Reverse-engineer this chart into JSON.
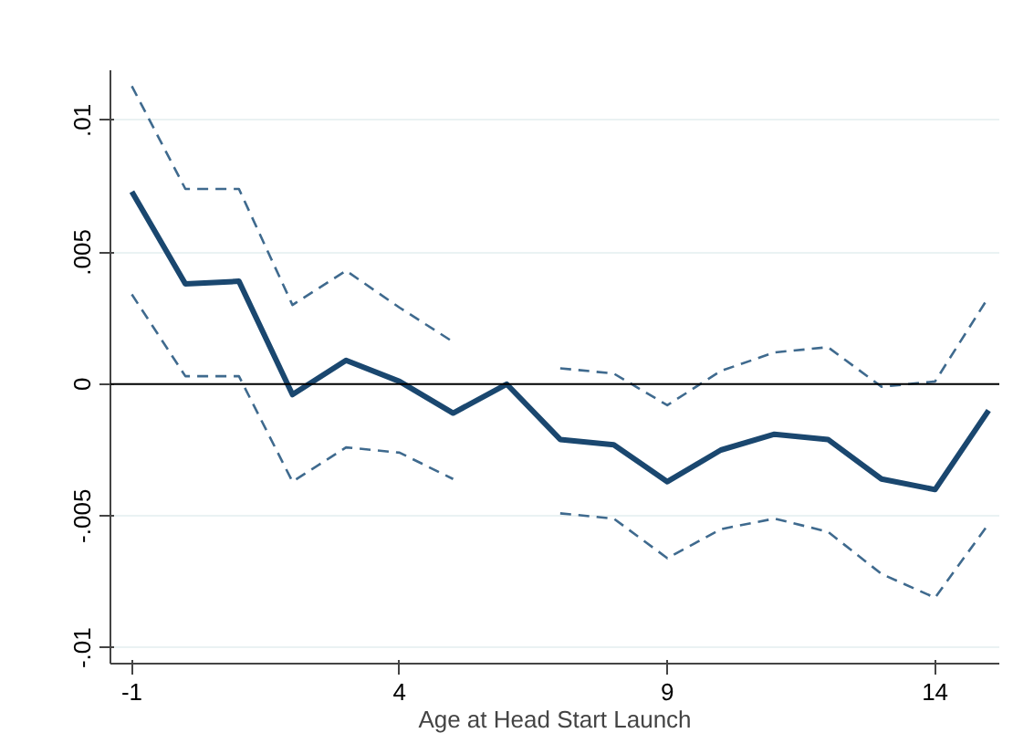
{
  "chart_data": {
    "type": "line",
    "xlabel": "Age at Head Start Launch",
    "x": [
      -1,
      0,
      1,
      2,
      3,
      4,
      5,
      6,
      7,
      8,
      9,
      10,
      11,
      12,
      13,
      14,
      15
    ],
    "series": [
      {
        "color": "#1a476f",
        "line_style": "solid",
        "values": [
          0.0073,
          0.0038,
          0.0039,
          -0.0004,
          0.0009,
          0.0001,
          -0.0011,
          0.0,
          -0.0021,
          -0.0023,
          -0.0037,
          -0.0025,
          -0.0019,
          -0.0021,
          -0.0036,
          -0.004,
          -0.001
        ]
      },
      {
        "color": "#3f6a8e",
        "line_style": "dashed",
        "values": [
          0.0113,
          0.0074,
          0.0074,
          0.003,
          0.0043,
          0.0029,
          0.0016,
          null,
          0.0006,
          0.0004,
          -0.0008,
          0.0005,
          0.0012,
          0.0014,
          -0.0001,
          0.0001,
          0.0033
        ]
      },
      {
        "color": "#3f6a8e",
        "line_style": "dashed",
        "values": [
          0.0034,
          0.0003,
          0.0003,
          -0.0037,
          -0.0024,
          -0.0026,
          -0.0036,
          null,
          -0.0049,
          -0.0051,
          -0.0066,
          -0.0055,
          -0.0051,
          -0.0056,
          -0.0072,
          -0.0081,
          -0.0053
        ]
      }
    ],
    "xlim": [
      -1.4,
      15.2
    ],
    "ylim": [
      -0.0106,
      0.0119
    ],
    "xticks": [
      -1,
      4,
      9,
      14
    ],
    "yticks": [
      {
        "value": -0.01,
        "label": "-.01"
      },
      {
        "value": -0.005,
        "label": "-.005"
      },
      {
        "value": 0,
        "label": "0"
      },
      {
        "value": 0.005,
        "label": ".005"
      },
      {
        "value": 0.01,
        "label": ".01"
      }
    ],
    "ref_lines": [
      {
        "axis": "y",
        "value": 0,
        "color": "#000000"
      }
    ],
    "grid": "y",
    "marker": "none"
  }
}
